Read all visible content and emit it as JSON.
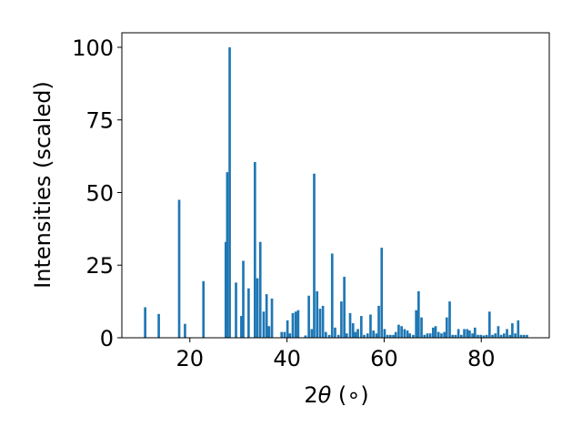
{
  "chart_data": {
    "type": "bar",
    "xlabel_prefix": "2",
    "xlabel_symbol": "θ",
    "xlabel_suffix": " (∘)",
    "ylabel": "Intensities (scaled)",
    "xlim": [
      6,
      94
    ],
    "ylim": [
      0,
      105
    ],
    "xticks": [
      20,
      40,
      60,
      80
    ],
    "yticks": [
      0,
      25,
      50,
      75,
      100
    ],
    "bar_color": "#1f77b4",
    "bar_width": 0.5,
    "grid": false,
    "bars": [
      {
        "x": 10.8,
        "y": 10.5
      },
      {
        "x": 13.6,
        "y": 8.2
      },
      {
        "x": 17.8,
        "y": 47.5
      },
      {
        "x": 19.0,
        "y": 4.8
      },
      {
        "x": 22.8,
        "y": 19.5
      },
      {
        "x": 27.4,
        "y": 33.0
      },
      {
        "x": 27.7,
        "y": 57.0
      },
      {
        "x": 28.2,
        "y": 100.0
      },
      {
        "x": 29.5,
        "y": 19.0
      },
      {
        "x": 30.6,
        "y": 7.5
      },
      {
        "x": 31.0,
        "y": 26.5
      },
      {
        "x": 32.1,
        "y": 17.0
      },
      {
        "x": 33.4,
        "y": 60.5
      },
      {
        "x": 33.9,
        "y": 20.5
      },
      {
        "x": 34.5,
        "y": 33.0
      },
      {
        "x": 35.2,
        "y": 9.0
      },
      {
        "x": 35.8,
        "y": 15.0
      },
      {
        "x": 36.3,
        "y": 4.0
      },
      {
        "x": 36.9,
        "y": 13.5
      },
      {
        "x": 38.9,
        "y": 2.0
      },
      {
        "x": 39.5,
        "y": 2.0
      },
      {
        "x": 40.1,
        "y": 6.0
      },
      {
        "x": 40.6,
        "y": 1.5
      },
      {
        "x": 41.2,
        "y": 8.5
      },
      {
        "x": 41.8,
        "y": 9.0
      },
      {
        "x": 42.3,
        "y": 9.5
      },
      {
        "x": 43.8,
        "y": 0.8
      },
      {
        "x": 44.5,
        "y": 14.5
      },
      {
        "x": 45.1,
        "y": 3.0
      },
      {
        "x": 45.6,
        "y": 56.5
      },
      {
        "x": 46.2,
        "y": 16.0
      },
      {
        "x": 46.8,
        "y": 10.0
      },
      {
        "x": 47.4,
        "y": 11.0
      },
      {
        "x": 48.0,
        "y": 2.0
      },
      {
        "x": 48.7,
        "y": 1.0
      },
      {
        "x": 49.3,
        "y": 29.0
      },
      {
        "x": 49.9,
        "y": 3.5
      },
      {
        "x": 50.6,
        "y": 1.0
      },
      {
        "x": 51.2,
        "y": 12.5
      },
      {
        "x": 51.8,
        "y": 21.0
      },
      {
        "x": 52.3,
        "y": 1.5
      },
      {
        "x": 53.0,
        "y": 8.5
      },
      {
        "x": 53.6,
        "y": 5.0
      },
      {
        "x": 54.1,
        "y": 2.0
      },
      {
        "x": 54.6,
        "y": 3.0
      },
      {
        "x": 55.3,
        "y": 7.5
      },
      {
        "x": 55.9,
        "y": 1.0
      },
      {
        "x": 56.6,
        "y": 1.5
      },
      {
        "x": 57.2,
        "y": 8.0
      },
      {
        "x": 57.8,
        "y": 2.5
      },
      {
        "x": 58.4,
        "y": 1.5
      },
      {
        "x": 58.9,
        "y": 11.0
      },
      {
        "x": 59.5,
        "y": 31.0
      },
      {
        "x": 60.1,
        "y": 3.0
      },
      {
        "x": 60.7,
        "y": 1.0
      },
      {
        "x": 61.3,
        "y": 1.0
      },
      {
        "x": 61.9,
        "y": 1.0
      },
      {
        "x": 62.4,
        "y": 2.0
      },
      {
        "x": 63.0,
        "y": 4.5
      },
      {
        "x": 63.6,
        "y": 4.0
      },
      {
        "x": 64.2,
        "y": 3.0
      },
      {
        "x": 64.8,
        "y": 2.5
      },
      {
        "x": 65.3,
        "y": 1.5
      },
      {
        "x": 66.0,
        "y": 1.0
      },
      {
        "x": 66.6,
        "y": 9.5
      },
      {
        "x": 67.1,
        "y": 16.0
      },
      {
        "x": 67.7,
        "y": 7.0
      },
      {
        "x": 68.3,
        "y": 1.0
      },
      {
        "x": 68.9,
        "y": 1.5
      },
      {
        "x": 69.5,
        "y": 1.5
      },
      {
        "x": 70.1,
        "y": 3.5
      },
      {
        "x": 70.6,
        "y": 4.0
      },
      {
        "x": 71.2,
        "y": 2.0
      },
      {
        "x": 71.8,
        "y": 1.5
      },
      {
        "x": 72.4,
        "y": 2.0
      },
      {
        "x": 72.9,
        "y": 7.0
      },
      {
        "x": 73.5,
        "y": 12.5
      },
      {
        "x": 74.1,
        "y": 1.0
      },
      {
        "x": 74.7,
        "y": 1.0
      },
      {
        "x": 75.3,
        "y": 3.0
      },
      {
        "x": 75.9,
        "y": 1.0
      },
      {
        "x": 76.5,
        "y": 3.0
      },
      {
        "x": 77.1,
        "y": 3.0
      },
      {
        "x": 77.6,
        "y": 2.5
      },
      {
        "x": 78.2,
        "y": 1.5
      },
      {
        "x": 78.7,
        "y": 3.5
      },
      {
        "x": 79.3,
        "y": 1.0
      },
      {
        "x": 79.9,
        "y": 1.0
      },
      {
        "x": 80.5,
        "y": 0.8
      },
      {
        "x": 81.1,
        "y": 1.0
      },
      {
        "x": 81.7,
        "y": 9.0
      },
      {
        "x": 82.3,
        "y": 1.0
      },
      {
        "x": 82.9,
        "y": 1.5
      },
      {
        "x": 83.5,
        "y": 4.0
      },
      {
        "x": 84.1,
        "y": 1.0
      },
      {
        "x": 84.7,
        "y": 1.5
      },
      {
        "x": 85.3,
        "y": 3.0
      },
      {
        "x": 85.9,
        "y": 1.0
      },
      {
        "x": 86.4,
        "y": 5.0
      },
      {
        "x": 87.0,
        "y": 1.5
      },
      {
        "x": 87.6,
        "y": 6.0
      },
      {
        "x": 88.2,
        "y": 1.0
      },
      {
        "x": 88.8,
        "y": 1.0
      },
      {
        "x": 89.4,
        "y": 1.0
      }
    ]
  }
}
